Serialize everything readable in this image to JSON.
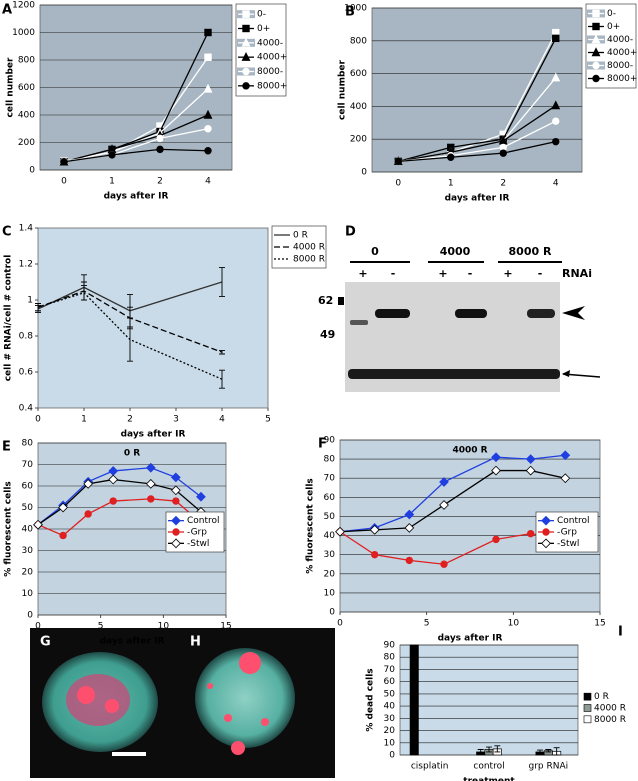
{
  "chart_data": [
    {
      "panel": "A",
      "type": "line",
      "y_label": "cell number",
      "x_label": "days after IR",
      "categories": [
        "0",
        "1",
        "2",
        "4"
      ],
      "ylim": [
        0,
        1200
      ],
      "yticks": [
        0,
        200,
        400,
        600,
        800,
        1000,
        1200
      ],
      "grid": true,
      "plot_bg": "#a7b6c2",
      "series": [
        {
          "name": "0-",
          "color": "#ffffff",
          "marker": "square",
          "values": [
            65,
            130,
            320,
            820
          ]
        },
        {
          "name": "0+",
          "color": "#000000",
          "marker": "square",
          "values": [
            60,
            150,
            280,
            1000
          ]
        },
        {
          "name": "4000-",
          "color": "#ffffff",
          "marker": "triangle",
          "values": [
            65,
            130,
            270,
            590
          ]
        },
        {
          "name": "4000+",
          "color": "#000000",
          "marker": "triangle",
          "values": [
            60,
            150,
            250,
            400
          ]
        },
        {
          "name": "8000-",
          "color": "#ffffff",
          "marker": "circle",
          "values": [
            65,
            110,
            230,
            300
          ]
        },
        {
          "name": "8000+",
          "color": "#000000",
          "marker": "circle",
          "values": [
            60,
            110,
            150,
            140
          ]
        }
      ]
    },
    {
      "panel": "B",
      "type": "line",
      "y_label": "cell number",
      "x_label": "days after IR",
      "categories": [
        "0",
        "1",
        "2",
        "4"
      ],
      "ylim": [
        0,
        1000
      ],
      "yticks": [
        0,
        200,
        400,
        600,
        800,
        1000
      ],
      "grid": true,
      "plot_bg": "#a7b6c2",
      "series": [
        {
          "name": "0-",
          "color": "#ffffff",
          "marker": "square",
          "values": [
            65,
            120,
            230,
            850
          ]
        },
        {
          "name": "0+",
          "color": "#000000",
          "marker": "square",
          "values": [
            65,
            150,
            200,
            815
          ]
        },
        {
          "name": "4000-",
          "color": "#ffffff",
          "marker": "triangle",
          "values": [
            65,
            120,
            190,
            575
          ]
        },
        {
          "name": "4000+",
          "color": "#000000",
          "marker": "triangle",
          "values": [
            65,
            120,
            190,
            405
          ]
        },
        {
          "name": "8000-",
          "color": "#ffffff",
          "marker": "circle",
          "values": [
            65,
            100,
            150,
            310
          ]
        },
        {
          "name": "8000+",
          "color": "#000000",
          "marker": "circle",
          "values": [
            65,
            90,
            115,
            185
          ]
        }
      ]
    },
    {
      "panel": "C",
      "type": "line",
      "y_label": "cell # RNAi/cell # control",
      "x_label": "days after IR",
      "x": [
        0,
        1,
        2,
        4
      ],
      "xlim": [
        0,
        5
      ],
      "xticks": [
        0,
        1,
        2,
        3,
        4,
        5
      ],
      "ylim": [
        0.4,
        1.4
      ],
      "yticks": [
        0.4,
        0.6,
        0.8,
        1,
        1.2,
        1.4
      ],
      "grid": false,
      "plot_bg": "#c9dbe8",
      "series": [
        {
          "name": "0 R",
          "color": "#333333",
          "marker": "none",
          "dash": "solid",
          "values": [
            0.95,
            1.07,
            0.94,
            1.1
          ],
          "errors": [
            0.02,
            0.07,
            0.09,
            0.08
          ]
        },
        {
          "name": "4000 R",
          "color": "#000000",
          "marker": "none",
          "dash": "dashed",
          "values": [
            0.96,
            1.05,
            0.9,
            0.71
          ],
          "errors": [
            0.02,
            0.05,
            0.06,
            0.01
          ]
        },
        {
          "name": "8000 R",
          "color": "#000000",
          "marker": "none",
          "dash": "dotted",
          "values": [
            0.96,
            1.04,
            0.78,
            0.56
          ],
          "errors": [
            0.02,
            0.04,
            0.12,
            0.05
          ]
        }
      ]
    },
    {
      "panel": "E",
      "type": "line",
      "title": "0 R",
      "y_label": "% fluorescent cells",
      "x_label": "days after IR",
      "x": [
        0,
        2,
        4,
        6,
        9,
        11,
        13
      ],
      "xlim": [
        0,
        15
      ],
      "xticks": [
        0,
        5,
        10,
        15
      ],
      "ylim": [
        0,
        80
      ],
      "yticks": [
        0,
        10,
        20,
        30,
        40,
        50,
        60,
        70,
        80
      ],
      "grid": true,
      "plot_bg": "#c3d3e0",
      "series": [
        {
          "name": "Control",
          "color": "#1f3fe0",
          "marker": "diamond",
          "values": [
            42,
            51,
            62,
            67,
            68.5,
            64,
            55
          ]
        },
        {
          "name": "-Grp",
          "color": "#e02020",
          "marker": "circle",
          "values": [
            42,
            37,
            47,
            53,
            54,
            53,
            43
          ]
        },
        {
          "name": "-Stwl",
          "color": "#000000",
          "marker": "diamond",
          "marker_fill": "#ffffff",
          "values": [
            42,
            50,
            61,
            63,
            61,
            58,
            48
          ]
        }
      ]
    },
    {
      "panel": "F",
      "type": "line",
      "title": "4000 R",
      "y_label": "% fluorescent cells",
      "x_label": "days after IR",
      "x": [
        0,
        2,
        4,
        6,
        9,
        11,
        13
      ],
      "xlim": [
        0,
        15
      ],
      "xticks": [
        0,
        5,
        10,
        15
      ],
      "ylim": [
        0,
        90
      ],
      "yticks": [
        0,
        10,
        20,
        30,
        40,
        50,
        60,
        70,
        80,
        90
      ],
      "grid": true,
      "plot_bg": "#c3d3e0",
      "series": [
        {
          "name": "Control",
          "color": "#1f3fe0",
          "marker": "diamond",
          "values": [
            42,
            44,
            51,
            68,
            81,
            80,
            82
          ]
        },
        {
          "name": "-Grp",
          "color": "#e02020",
          "marker": "circle",
          "values": [
            42,
            30,
            27,
            25,
            38,
            41,
            38
          ]
        },
        {
          "name": "-Stwl",
          "color": "#000000",
          "marker": "diamond",
          "marker_fill": "#ffffff",
          "values": [
            42,
            43,
            44,
            56,
            74,
            74,
            70
          ]
        }
      ]
    },
    {
      "panel": "I",
      "type": "bar",
      "y_label": "% dead cells",
      "x_label": "treatment",
      "categories": [
        "cisplatin",
        "control",
        "grp RNAi"
      ],
      "ylim": [
        0,
        90
      ],
      "yticks": [
        0,
        10,
        20,
        30,
        40,
        50,
        60,
        70,
        80,
        90
      ],
      "grid": true,
      "plot_bg": "#c9dbe8",
      "series": [
        {
          "name": "0 R",
          "color": "#000000",
          "values": [
            90,
            2.5,
            2.5
          ],
          "errors": [
            null,
            2,
            1.5
          ]
        },
        {
          "name": "4000 R",
          "color": "#8f9a94",
          "values": [
            null,
            4.5,
            3.5
          ],
          "errors": [
            null,
            2,
            1
          ]
        },
        {
          "name": "8000 R",
          "color": "#ffffff",
          "values": [
            null,
            5,
            3
          ],
          "errors": [
            null,
            2.5,
            3
          ]
        }
      ]
    }
  ],
  "blot": {
    "panel": "D",
    "groups": [
      "0",
      "4000",
      "8000 R"
    ],
    "lanes": [
      "+",
      "-",
      "+",
      "-",
      "+",
      "-"
    ],
    "treatment": "RNAi",
    "markers": [
      "62",
      "49"
    ]
  },
  "micrographs": [
    {
      "panel": "G"
    },
    {
      "panel": "H"
    }
  ]
}
